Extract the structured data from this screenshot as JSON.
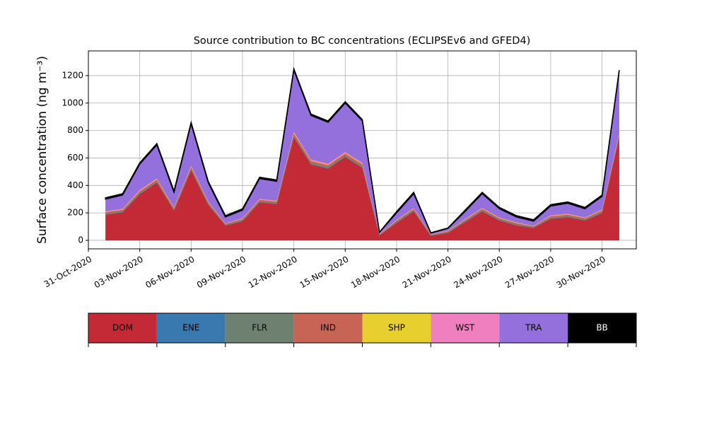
{
  "chart_data": {
    "type": "stacked_area",
    "title": "Source contribution to BC concentrations (ECLIPSEv6 and GFED4)",
    "y_label": "Surface concentration (ng m⁻³)",
    "x": [
      "2020-11-01",
      "2020-11-02",
      "2020-11-03",
      "2020-11-04",
      "2020-11-05",
      "2020-11-06",
      "2020-11-07",
      "2020-11-08",
      "2020-11-09",
      "2020-11-10",
      "2020-11-11",
      "2020-11-12",
      "2020-11-13",
      "2020-11-14",
      "2020-11-15",
      "2020-11-16",
      "2020-11-17",
      "2020-11-18",
      "2020-11-19",
      "2020-11-20",
      "2020-11-21",
      "2020-11-22",
      "2020-11-23",
      "2020-11-24",
      "2020-11-25",
      "2020-11-26",
      "2020-11-27",
      "2020-11-28",
      "2020-11-29",
      "2020-11-30",
      "2020-12-01"
    ],
    "xlim": [
      "2020-10-31",
      "2020-12-02"
    ],
    "xticks": [
      {
        "value": "2020-10-31",
        "label": "31-Oct-2020"
      },
      {
        "value": "2020-11-03",
        "label": "03-Nov-2020"
      },
      {
        "value": "2020-11-06",
        "label": "06-Nov-2020"
      },
      {
        "value": "2020-11-09",
        "label": "09-Nov-2020"
      },
      {
        "value": "2020-11-12",
        "label": "12-Nov-2020"
      },
      {
        "value": "2020-11-15",
        "label": "15-Nov-2020"
      },
      {
        "value": "2020-11-18",
        "label": "18-Nov-2020"
      },
      {
        "value": "2020-11-21",
        "label": "21-Nov-2020"
      },
      {
        "value": "2020-11-24",
        "label": "24-Nov-2020"
      },
      {
        "value": "2020-11-27",
        "label": "27-Nov-2020"
      },
      {
        "value": "2020-11-30",
        "label": "30-Nov-2020"
      }
    ],
    "ylim": [
      -62,
      1380
    ],
    "yticks": [
      0,
      200,
      400,
      600,
      800,
      1000,
      1200
    ],
    "grid": true,
    "series": [
      {
        "name": "DOM",
        "color": "#c42a35",
        "values": [
          186,
          204,
          336,
          420,
          216,
          510,
          258,
          108,
          138,
          276,
          264,
          750,
          552,
          522,
          606,
          528,
          36,
          126,
          210,
          33,
          54,
          132,
          210,
          144,
          108,
          90,
          156,
          168,
          144,
          198,
          744
        ]
      },
      {
        "name": "ENE",
        "color": "#3a78b0",
        "values": [
          2,
          2,
          3,
          3,
          2,
          3,
          2,
          1,
          2,
          2,
          2,
          4,
          3,
          3,
          3,
          3,
          1,
          2,
          2,
          1,
          1,
          2,
          2,
          2,
          2,
          1,
          2,
          2,
          2,
          2,
          4
        ]
      },
      {
        "name": "FLR",
        "color": "#6e8070",
        "values": [
          8,
          8,
          8,
          8,
          8,
          8,
          8,
          6,
          8,
          8,
          8,
          10,
          10,
          10,
          10,
          10,
          4,
          8,
          8,
          4,
          6,
          8,
          8,
          8,
          8,
          6,
          8,
          8,
          8,
          8,
          10
        ]
      },
      {
        "name": "IND",
        "color": "#c86455",
        "values": [
          10,
          10,
          12,
          12,
          10,
          14,
          10,
          6,
          8,
          10,
          10,
          16,
          14,
          14,
          14,
          14,
          4,
          8,
          10,
          4,
          6,
          8,
          10,
          8,
          8,
          6,
          10,
          10,
          8,
          10,
          16
        ]
      },
      {
        "name": "SHP",
        "color": "#e6cf2e",
        "values": [
          2,
          2,
          3,
          3,
          2,
          3,
          2,
          1,
          2,
          2,
          2,
          3,
          3,
          3,
          3,
          3,
          1,
          2,
          2,
          1,
          1,
          2,
          2,
          2,
          2,
          1,
          2,
          2,
          2,
          2,
          3
        ]
      },
      {
        "name": "WST",
        "color": "#f07fbf",
        "values": [
          5,
          5,
          6,
          6,
          5,
          8,
          5,
          3,
          4,
          5,
          5,
          10,
          8,
          8,
          8,
          8,
          2,
          4,
          5,
          2,
          3,
          4,
          5,
          4,
          4,
          3,
          5,
          5,
          4,
          5,
          10
        ]
      },
      {
        "name": "TRA",
        "color": "#9370db",
        "values": [
          87,
          99,
          187,
          243,
          107,
          303,
          135,
          45,
          58,
          147,
          139,
          447,
          320,
          300,
          356,
          304,
          10,
          50,
          103,
          8,
          16,
          54,
          103,
          62,
          38,
          33,
          67,
          75,
          62,
          95,
          443
        ]
      },
      {
        "name": "BB",
        "color": "#000000",
        "values": [
          10,
          10,
          10,
          10,
          10,
          10,
          10,
          10,
          10,
          10,
          10,
          10,
          10,
          10,
          10,
          10,
          2,
          10,
          10,
          2,
          3,
          10,
          10,
          10,
          10,
          10,
          10,
          10,
          10,
          10,
          10
        ]
      }
    ]
  }
}
